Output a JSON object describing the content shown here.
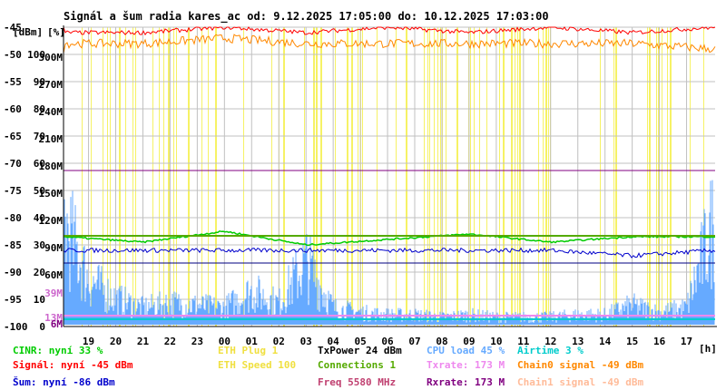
{
  "chart_data": {
    "type": "line",
    "title": "Signál a šum radia kares_ac od: 9.12.2025 17:05:00 do: 10.12.2025 17:03:00",
    "y_unit_labels": [
      "[dBm]",
      "[%]"
    ],
    "x_unit_label": "[h]",
    "x_ticks": [
      "19",
      "20",
      "21",
      "22",
      "23",
      "00",
      "01",
      "02",
      "03",
      "04",
      "05",
      "06",
      "07",
      "08",
      "09",
      "10",
      "11",
      "12",
      "13",
      "14",
      "15",
      "16",
      "17"
    ],
    "y_ticks_dbm": [
      "-45",
      "-50",
      "-55",
      "-60",
      "-65",
      "-70",
      "-75",
      "-80",
      "-85",
      "-90",
      "-95",
      "-100"
    ],
    "y_ticks_pct": [
      "100",
      "90",
      "80",
      "70",
      "60",
      "50",
      "40",
      "30",
      "20",
      "10",
      "0"
    ],
    "y_ticks_rate": [
      "300M",
      "270M",
      "240M",
      "210M",
      "180M",
      "150M",
      "120M",
      "90M",
      "60M",
      "39M",
      "13M",
      "6M"
    ],
    "y_ticks_rate_colors": [
      "#000000",
      "#000000",
      "#000000",
      "#000000",
      "#000000",
      "#000000",
      "#000000",
      "#000000",
      "#000000",
      "#cc66cc",
      "#cc66cc",
      "#800080"
    ],
    "dbm_range": [
      -100,
      -45
    ],
    "x_range_hours": [
      17.08,
      41.05
    ],
    "grid": true,
    "series": [
      {
        "name": "CINR",
        "color": "#00cc00",
        "level_pct": 33,
        "x": [
          17.1,
          20,
          23,
          26,
          29,
          32,
          35,
          38,
          41
        ],
        "y": [
          33,
          31,
          35,
          30,
          32,
          34,
          31,
          33,
          33
        ]
      },
      {
        "name": "Signál",
        "color": "#ff0000",
        "unit": "dBm",
        "x": [
          17.1,
          20,
          23,
          26,
          29,
          32,
          35,
          38,
          41
        ],
        "y": [
          -46,
          -46,
          -45,
          -46,
          -45,
          -46,
          -45,
          -46,
          -45
        ]
      },
      {
        "name": "Šum",
        "color": "#0000cc",
        "unit": "dBm",
        "x": [
          17.1,
          20,
          23,
          26,
          29,
          32,
          35,
          38,
          41
        ],
        "y": [
          -86,
          -86,
          -86,
          -86,
          -86,
          -86,
          -86,
          -87,
          -86
        ]
      },
      {
        "name": "Chain0 signal",
        "color": "#ff8800",
        "unit": "dBm",
        "x": [
          17.1,
          20,
          23,
          26,
          29,
          32,
          35,
          38,
          41
        ],
        "y": [
          -48,
          -48,
          -47,
          -48,
          -48,
          -48,
          -48,
          -48,
          -49
        ]
      },
      {
        "name": "Connections",
        "color": "#55aa00",
        "x": [
          17.1,
          41
        ],
        "y": [
          1,
          1
        ]
      },
      {
        "name": "CPU load",
        "color": "#66aaff",
        "unit": "%",
        "x": [
          17.1,
          18,
          19,
          20,
          21,
          22,
          23,
          24,
          25,
          26,
          27,
          28,
          29,
          30,
          31,
          32,
          33,
          34,
          35,
          36,
          37,
          38,
          39,
          40,
          41
        ],
        "y": [
          45,
          20,
          12,
          8,
          10,
          9,
          8,
          15,
          10,
          28,
          8,
          6,
          5,
          5,
          4,
          5,
          4,
          4,
          4,
          5,
          5,
          9,
          6,
          8,
          45
        ]
      }
    ],
    "legend": [
      {
        "label": "CINR: nyní 33 %",
        "color": "#00cc00"
      },
      {
        "label": "Signál: nyní -45 dBm",
        "color": "#ff0000"
      },
      {
        "label": "Šum: nyní -86 dBm",
        "color": "#0000cc"
      },
      {
        "label": "ETH Plug 1",
        "color": "#f0e040"
      },
      {
        "label": "ETH Speed 100",
        "color": "#f0e040"
      },
      {
        "label": "TxPower 24 dBm",
        "color": "#000000"
      },
      {
        "label": "Connections 1",
        "color": "#55aa00"
      },
      {
        "label": "Freq 5580 MHz",
        "color": "#c04070"
      },
      {
        "label": "CPU load 45 %",
        "color": "#66aaff"
      },
      {
        "label": "Txrate: 173 M",
        "color": "#ee88ee"
      },
      {
        "label": "Rxrate: 173 M",
        "color": "#800080"
      },
      {
        "label": "Airtime 3 %",
        "color": "#00cccc"
      },
      {
        "label": "Chain0 signal -49 dBm",
        "color": "#ff8800"
      },
      {
        "label": "Chain1 signal -49 dBm",
        "color": "#ffbb99"
      }
    ]
  }
}
